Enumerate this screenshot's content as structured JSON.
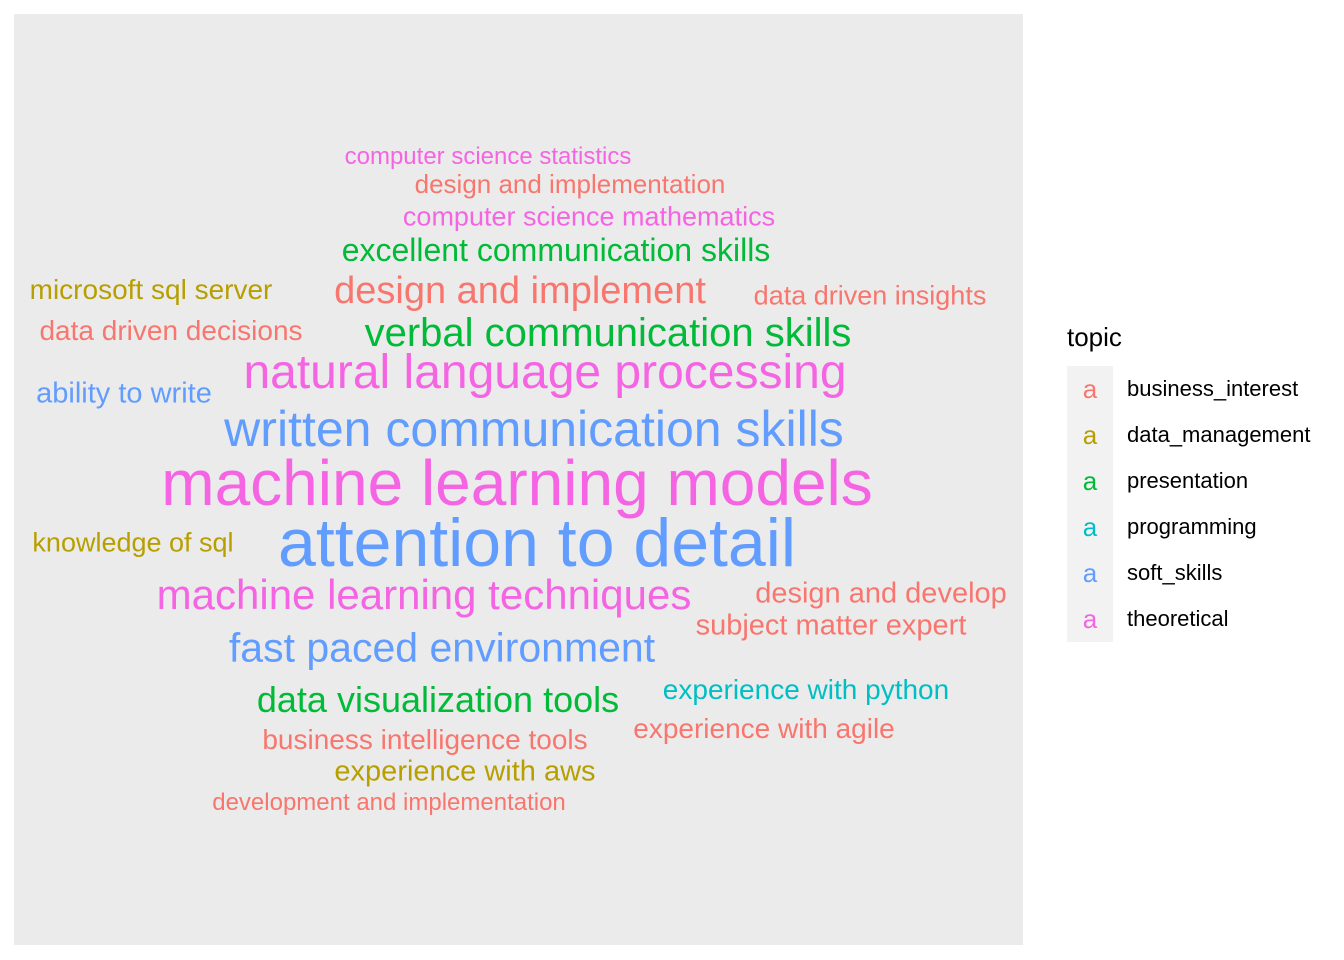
{
  "chart_data": {
    "type": "wordcloud",
    "legend": {
      "title": "topic",
      "key_glyph": "a",
      "placement": "right",
      "entries": [
        {
          "name": "business_interest",
          "color": "#F8766D"
        },
        {
          "name": "data_management",
          "color": "#B79F00"
        },
        {
          "name": "presentation",
          "color": "#00BA38"
        },
        {
          "name": "programming",
          "color": "#00BFC4"
        },
        {
          "name": "soft_skills",
          "color": "#619CFF"
        },
        {
          "name": "theoretical",
          "color": "#F564E3"
        }
      ]
    },
    "words": [
      {
        "text": "computer science statistics",
        "topic": "theoretical"
      },
      {
        "text": "design and implementation",
        "topic": "business_interest"
      },
      {
        "text": "computer science mathematics",
        "topic": "theoretical"
      },
      {
        "text": "excellent communication skills",
        "topic": "presentation"
      },
      {
        "text": "microsoft sql server",
        "topic": "data_management"
      },
      {
        "text": "design and implement",
        "topic": "business_interest"
      },
      {
        "text": "data driven insights",
        "topic": "business_interest"
      },
      {
        "text": "data driven decisions",
        "topic": "business_interest"
      },
      {
        "text": "verbal communication skills",
        "topic": "presentation"
      },
      {
        "text": "natural language processing",
        "topic": "theoretical"
      },
      {
        "text": "ability to write",
        "topic": "soft_skills"
      },
      {
        "text": "written communication skills",
        "topic": "soft_skills"
      },
      {
        "text": "machine learning models",
        "topic": "theoretical"
      },
      {
        "text": "knowledge of sql",
        "topic": "data_management"
      },
      {
        "text": "attention to detail",
        "topic": "soft_skills"
      },
      {
        "text": "machine learning techniques",
        "topic": "theoretical"
      },
      {
        "text": "design and develop",
        "topic": "business_interest"
      },
      {
        "text": "subject matter expert",
        "topic": "business_interest"
      },
      {
        "text": "fast paced environment",
        "topic": "soft_skills"
      },
      {
        "text": "data visualization tools",
        "topic": "presentation"
      },
      {
        "text": "experience with python",
        "topic": "programming"
      },
      {
        "text": "experience with agile",
        "topic": "business_interest"
      },
      {
        "text": "business intelligence tools",
        "topic": "business_interest"
      },
      {
        "text": "experience with aws",
        "topic": "data_management"
      },
      {
        "text": "development and implementation",
        "topic": "business_interest"
      }
    ]
  }
}
